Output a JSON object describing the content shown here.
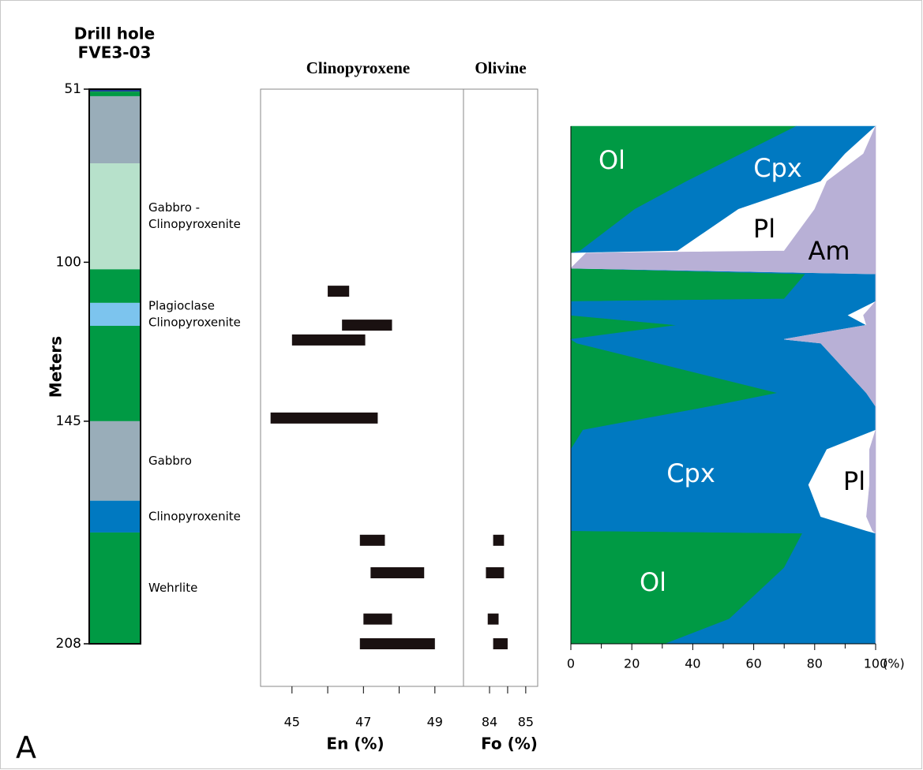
{
  "panel_label": "A",
  "chart_data": [
    {
      "type": "strip-log",
      "title": [
        "Drill hole",
        "FVE3-03"
      ],
      "ylabel": "Meters",
      "ylim": [
        51,
        208
      ],
      "yticks": [
        51,
        100,
        145,
        208
      ],
      "reversed": true,
      "layers": [
        {
          "top": 51,
          "bottom": 51.7,
          "color": "#1c3f94"
        },
        {
          "top": 51.7,
          "bottom": 53,
          "color": "#009a44"
        },
        {
          "top": 53,
          "bottom": 72,
          "color": "#99adb9"
        },
        {
          "top": 72,
          "bottom": 102,
          "color": "#b7e1cb",
          "label": [
            "Gabbro -",
            "Clinopyroxenite"
          ]
        },
        {
          "top": 102,
          "bottom": 111.5,
          "color": "#009a44"
        },
        {
          "top": 111.5,
          "bottom": 118,
          "color": "#7cc4ee",
          "label": [
            "Plagioclase",
            "Clinopyroxenite"
          ]
        },
        {
          "top": 118,
          "bottom": 145,
          "color": "#009a44"
        },
        {
          "top": 145,
          "bottom": 167.5,
          "color": "#99adb9",
          "label": [
            "Gabbro"
          ]
        },
        {
          "top": 167.5,
          "bottom": 176.5,
          "color": "#0079c1",
          "label": [
            "Clinopyroxenite"
          ]
        },
        {
          "top": 176.5,
          "bottom": 208,
          "color": "#009a44",
          "label": [
            "Wehrlite"
          ]
        }
      ]
    },
    {
      "type": "range",
      "color": "#1a1111",
      "panels": [
        {
          "title": "Clinopyroxene",
          "xlabel": "En (%)",
          "xlim": [
            44.12,
            49.8
          ],
          "xticks": [
            45,
            47,
            49
          ],
          "xminor": [
            46,
            48
          ],
          "ranges": [
            {
              "depth": 108.2,
              "min": 46.0,
              "max": 46.6
            },
            {
              "depth": 117.8,
              "min": 46.4,
              "max": 47.8
            },
            {
              "depth": 122,
              "min": 45.0,
              "max": 47.05
            },
            {
              "depth": 144.1,
              "min": 44.4,
              "max": 47.4
            },
            {
              "depth": 178.7,
              "min": 46.9,
              "max": 47.6
            },
            {
              "depth": 187.9,
              "min": 47.2,
              "max": 48.7
            },
            {
              "depth": 201,
              "min": 47.0,
              "max": 47.8
            },
            {
              "depth": 208,
              "min": 46.9,
              "max": 49.0
            }
          ]
        },
        {
          "title": "Olivine",
          "xlabel": "Fo (%)",
          "xlim": [
            83.28,
            85.33
          ],
          "xticks": [
            84,
            85
          ],
          "xminor": [
            84.5
          ],
          "ranges": [
            {
              "depth": 178.7,
              "min": 84.1,
              "max": 84.4
            },
            {
              "depth": 187.9,
              "min": 83.9,
              "max": 84.4
            },
            {
              "depth": 201,
              "min": 83.95,
              "max": 84.25
            },
            {
              "depth": 208,
              "min": 84.1,
              "max": 84.5
            }
          ]
        }
      ]
    },
    {
      "type": "stacked-area",
      "orientation": "horizontal",
      "xlim": [
        0,
        100
      ],
      "xticks": [
        0,
        20,
        40,
        60,
        80,
        100
      ],
      "xminor": [
        10,
        30,
        50,
        70,
        90
      ],
      "xunit": "(%)",
      "depths": [
        61.5,
        69.3,
        77.1,
        85,
        96.8,
        97.4,
        101.7,
        103.3,
        110.4,
        111.1,
        115,
        117.8,
        121.8,
        122.9,
        137,
        140.8,
        147.5,
        153,
        163,
        172,
        176,
        176.7,
        186.5,
        201,
        208
      ],
      "series": [
        {
          "name": "Ol",
          "color": "#009a44",
          "values": [
            74,
            56,
            38,
            21,
            3,
            0,
            0,
            77,
            70,
            0,
            0,
            35,
            0,
            2,
            68,
            46,
            4,
            0,
            0,
            0,
            0,
            76,
            70,
            52,
            31
          ]
        },
        {
          "name": "Cpx",
          "color": "#0079c1",
          "values": [
            26,
            34,
            44,
            34,
            32,
            0,
            0,
            23,
            30,
            100,
            91,
            62,
            70,
            80,
            29,
            54,
            96,
            84,
            78,
            82,
            97,
            24,
            30,
            48,
            69
          ]
        },
        {
          "name": "Pl",
          "color": "#ffffff",
          "values": [
            0,
            6,
            2,
            25,
            35,
            5,
            0,
            0,
            0,
            0,
            5,
            0,
            0,
            0,
            0,
            0,
            0,
            14,
            20,
            15,
            2,
            0,
            0,
            0,
            0
          ]
        },
        {
          "name": "Am",
          "color": "#b8b0d6",
          "values": [
            0,
            4,
            16,
            20,
            30,
            95,
            100,
            0,
            0,
            0,
            4,
            3,
            30,
            18,
            3,
            0,
            0,
            2,
            2,
            3,
            1,
            0,
            0,
            0,
            0
          ]
        }
      ]
    }
  ]
}
